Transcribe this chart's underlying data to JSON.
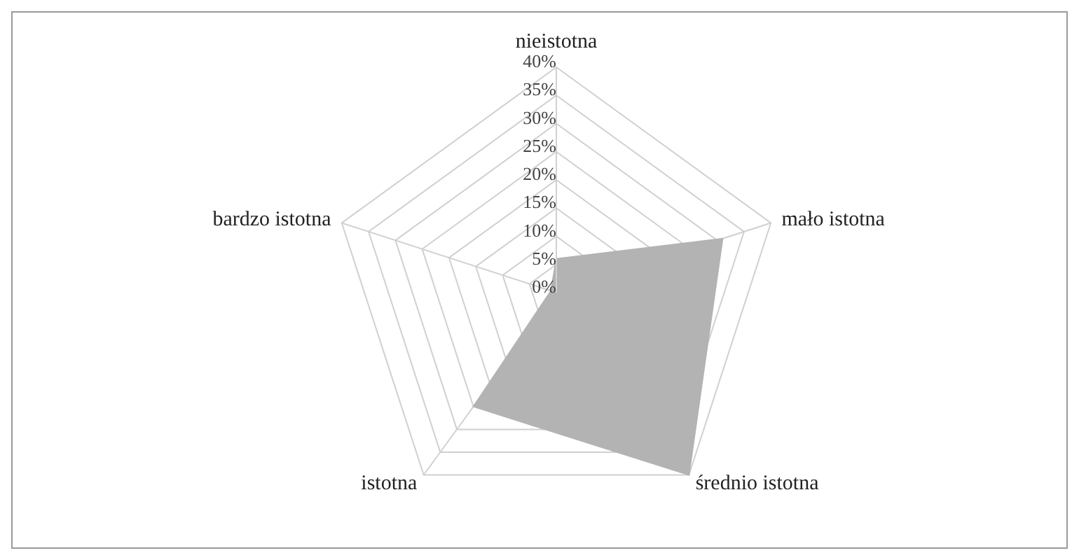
{
  "chart_data": {
    "type": "radar",
    "categories": [
      "nieistotna",
      "mało istotna",
      "średnio istotna",
      "istotna",
      "bardzo istotna"
    ],
    "series": [
      {
        "color": "#b3b3b3",
        "values": [
          6,
          31,
          40,
          25,
          1
        ]
      }
    ],
    "ylim": [
      0,
      40
    ],
    "yticks": [
      {
        "value": 0,
        "label": "0%"
      },
      {
        "value": 5,
        "label": "5%"
      },
      {
        "value": 10,
        "label": "10%"
      },
      {
        "value": 15,
        "label": "15%"
      },
      {
        "value": 20,
        "label": "20%"
      },
      {
        "value": 25,
        "label": "25%"
      },
      {
        "value": 30,
        "label": "30%"
      },
      {
        "value": 35,
        "label": "35%"
      },
      {
        "value": 40,
        "label": "40%"
      }
    ],
    "grid": true,
    "legend": false
  }
}
